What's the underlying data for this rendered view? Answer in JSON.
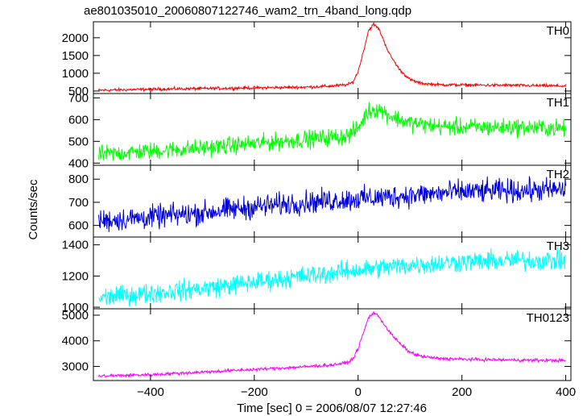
{
  "chart_data": {
    "type": "line",
    "title": "ae801035010_20060807122746_wam2_trn_4band_long.qdp",
    "xlabel": "Time [sec] 0 = 2006/08/07 12:27:46",
    "ylabel": "Counts/sec",
    "xlim": [
      -510,
      410
    ],
    "xticks": [
      -400,
      -200,
      0,
      200,
      400
    ],
    "grid": false,
    "panels": [
      {
        "name": "TH0",
        "color": "#ff0000",
        "ylim": [
          430,
          2450
        ],
        "yticks": [
          500,
          1000,
          1500,
          2000
        ],
        "x": [
          -500,
          -400,
          -300,
          -200,
          -100,
          -50,
          -20,
          -10,
          0,
          10,
          20,
          30,
          40,
          50,
          60,
          80,
          100,
          120,
          150,
          200,
          300,
          400
        ],
        "y": [
          520,
          550,
          570,
          590,
          610,
          640,
          680,
          750,
          1050,
          1600,
          2200,
          2380,
          2250,
          1900,
          1550,
          1100,
          820,
          720,
          680,
          670,
          660,
          640
        ],
        "noise": 30
      },
      {
        "name": "TH1",
        "color": "#00ff00",
        "ylim": [
          390,
          720
        ],
        "yticks": [
          400,
          500,
          600,
          700
        ],
        "x": [
          -500,
          -400,
          -300,
          -200,
          -100,
          -20,
          0,
          20,
          40,
          60,
          80,
          100,
          150,
          200,
          300,
          400
        ],
        "y": [
          440,
          455,
          470,
          490,
          510,
          525,
          560,
          640,
          650,
          620,
          600,
          585,
          570,
          565,
          565,
          560
        ],
        "noise": 28
      },
      {
        "name": "TH2",
        "color": "#0000dd",
        "ylim": [
          550,
          860
        ],
        "yticks": [
          600,
          700,
          800
        ],
        "x": [
          -500,
          -400,
          -300,
          -200,
          -100,
          0,
          100,
          200,
          300,
          400
        ],
        "y": [
          620,
          635,
          655,
          680,
          700,
          715,
          730,
          745,
          750,
          755
        ],
        "noise": 35
      },
      {
        "name": "TH3",
        "color": "#00ffff",
        "ylim": [
          990,
          1450
        ],
        "yticks": [
          1000,
          1200,
          1400
        ],
        "x": [
          -500,
          -400,
          -300,
          -200,
          -100,
          0,
          100,
          200,
          300,
          400
        ],
        "y": [
          1060,
          1090,
          1120,
          1160,
          1200,
          1240,
          1270,
          1290,
          1300,
          1300
        ],
        "noise": 45
      },
      {
        "name": "TH0123",
        "color": "#ff00ff",
        "ylim": [
          2450,
          5250
        ],
        "yticks": [
          3000,
          4000,
          5000
        ],
        "x": [
          -500,
          -400,
          -300,
          -200,
          -100,
          -50,
          -20,
          -10,
          0,
          10,
          20,
          30,
          40,
          50,
          60,
          80,
          100,
          120,
          150,
          200,
          300,
          400
        ],
        "y": [
          2620,
          2680,
          2780,
          2880,
          2990,
          3060,
          3150,
          3300,
          3700,
          4300,
          4900,
          5100,
          4950,
          4650,
          4350,
          3900,
          3550,
          3400,
          3320,
          3280,
          3250,
          3230
        ],
        "noise": 45
      }
    ]
  }
}
